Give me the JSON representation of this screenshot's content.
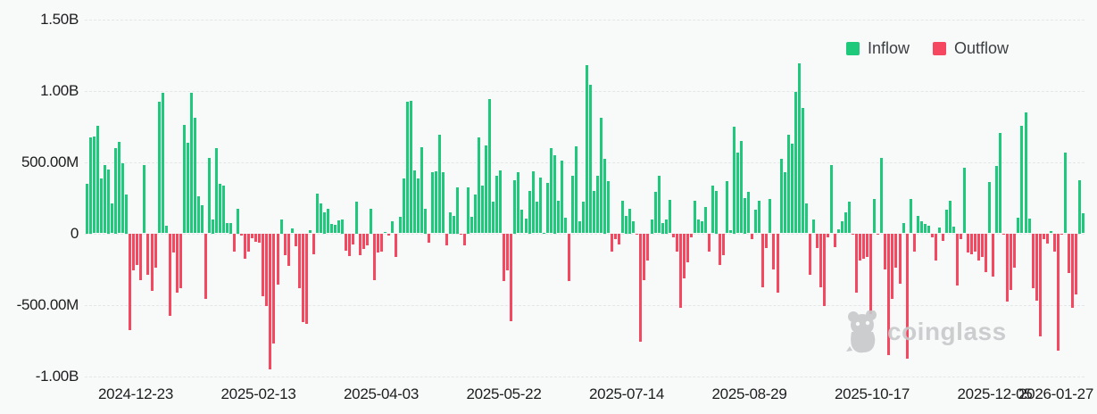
{
  "chart": {
    "legend": {
      "inflow_label": "Inflow",
      "outflow_label": "Outflow"
    },
    "watermark": "coinglass",
    "colors": {
      "inflow": "#1ec97c",
      "outflow": "#f5475f",
      "grid": "#e4e6e8",
      "text": "#1d1d1f",
      "watermark": "#c7c9cb",
      "background": "#f8f9f9"
    }
  },
  "chart_data": {
    "type": "bar",
    "title": "",
    "xlabel": "",
    "ylabel": "",
    "unit": "USD flow per day (M = millions, B = billions)",
    "grid": true,
    "legend_position": "top-right",
    "ylim_millions": [
      -1000,
      1500
    ],
    "y_ticks": [
      {
        "label": "1.50B",
        "value": 1500
      },
      {
        "label": "1.00B",
        "value": 1000
      },
      {
        "label": "500.00M",
        "value": 500
      },
      {
        "label": "0",
        "value": 0
      },
      {
        "label": "-500.00M",
        "value": -500
      },
      {
        "label": "-1.00B",
        "value": -1000
      }
    ],
    "x_ticks": [
      "2024-12-23",
      "2025-02-13",
      "2025-04-03",
      "2025-05-22",
      "2025-07-14",
      "2025-08-29",
      "2025-10-17",
      "2025-12-05",
      "2026-01-27"
    ],
    "series": [
      {
        "name": "Inflow",
        "sign": "positive values in values_millions"
      },
      {
        "name": "Outflow",
        "sign": "negative values in values_millions"
      }
    ],
    "values_millions": [
      350,
      675,
      680,
      755,
      385,
      480,
      450,
      210,
      600,
      640,
      490,
      275,
      -675,
      -260,
      -220,
      -330,
      480,
      -290,
      -405,
      -240,
      923,
      985,
      52,
      -575,
      -135,
      -415,
      -385,
      760,
      635,
      985,
      812,
      260,
      198,
      -460,
      527,
      100,
      594,
      344,
      333,
      73,
      75,
      -125,
      175,
      -15,
      -175,
      -125,
      -35,
      -60,
      -65,
      -440,
      -510,
      -950,
      -770,
      -360,
      100,
      -150,
      -230,
      35,
      -90,
      -385,
      -620,
      -635,
      20,
      -145,
      280,
      210,
      150,
      170,
      65,
      60,
      90,
      100,
      -120,
      -160,
      -80,
      225,
      -155,
      -110,
      -85,
      175,
      -325,
      -135,
      -125,
      10,
      -15,
      85,
      -165,
      115,
      385,
      920,
      930,
      440,
      385,
      605,
      175,
      -65,
      430,
      435,
      690,
      430,
      -85,
      150,
      125,
      325,
      -10,
      -85,
      325,
      115,
      270,
      670,
      335,
      615,
      940,
      220,
      405,
      440,
      -335,
      -260,
      -615,
      375,
      430,
      165,
      105,
      300,
      435,
      220,
      390,
      5,
      355,
      595,
      550,
      230,
      510,
      110,
      -335,
      405,
      610,
      85,
      220,
      1180,
      1040,
      295,
      405,
      810,
      525,
      365,
      -125,
      -40,
      -75,
      230,
      125,
      175,
      85,
      -10,
      -760,
      -325,
      -190,
      100,
      290,
      405,
      75,
      100,
      235,
      -30,
      -125,
      -520,
      -315,
      -200,
      -30,
      230,
      95,
      85,
      185,
      -125,
      335,
      300,
      -220,
      -155,
      365,
      20,
      750,
      565,
      645,
      250,
      290,
      -40,
      165,
      230,
      -375,
      -105,
      240,
      -250,
      -415,
      520,
      430,
      690,
      630,
      990,
      1190,
      880,
      210,
      -292,
      98,
      -104,
      -375,
      -510,
      -31,
      479,
      -94,
      31,
      83,
      146,
      219,
      -10,
      -417,
      -188,
      -177,
      -167,
      -563,
      240,
      -10,
      531,
      -250,
      -854,
      -458,
      -240,
      -354,
      73,
      -875,
      240,
      -125,
      119,
      83,
      63,
      52,
      -31,
      -188,
      42,
      -52,
      167,
      229,
      46,
      -365,
      -42,
      458,
      -135,
      -146,
      -125,
      -188,
      -167,
      -271,
      358,
      -302,
      473,
      702,
      -10,
      -479,
      -396,
      -240,
      108,
      754,
      848,
      104,
      -385,
      -469,
      -719,
      -42,
      -73,
      15,
      -125,
      -823,
      -10,
      567,
      -281,
      -521,
      -427,
      375,
      140
    ]
  }
}
